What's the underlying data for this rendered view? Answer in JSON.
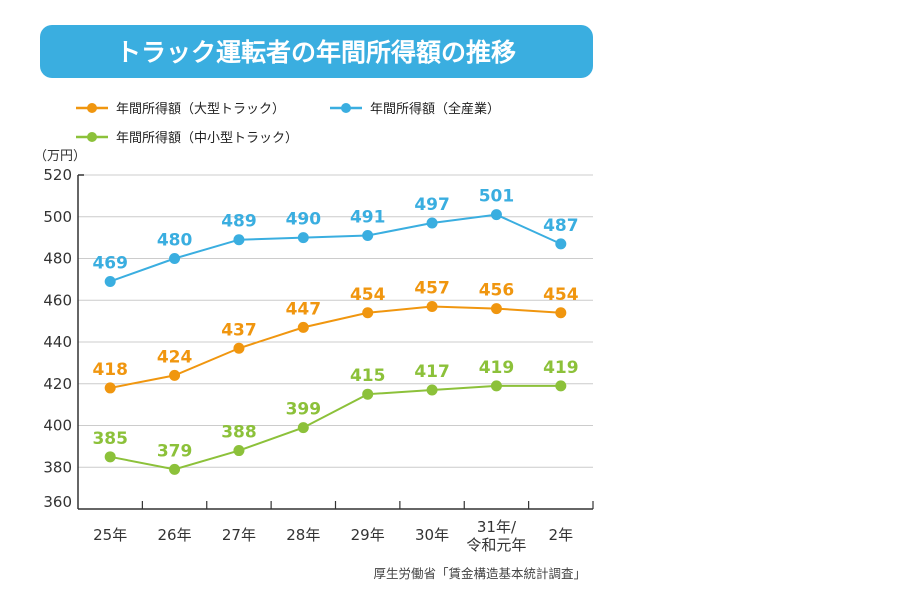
{
  "chart_data": {
    "type": "line",
    "title": "トラック運転者の年間所得額の推移",
    "ylabel": "（万円）",
    "xlabel": "",
    "ylim": [
      360,
      520
    ],
    "yticks": [
      "520",
      "500",
      "480",
      "460",
      "440",
      "420",
      "400",
      "380",
      "360"
    ],
    "grid": true,
    "legend_position": "top-left",
    "categories": [
      "25年",
      "26年",
      "27年",
      "28年",
      "29年",
      "30年",
      "31年/\n令和元年",
      "2年"
    ],
    "series": [
      {
        "name": "年間所得額（大型トラック）",
        "color": "#f0960f",
        "values": [
          418,
          424,
          437,
          447,
          454,
          457,
          456,
          454
        ]
      },
      {
        "name": "年間所得額（全産業）",
        "color": "#3aaee0",
        "values": [
          469,
          480,
          489,
          490,
          491,
          497,
          501,
          487
        ]
      },
      {
        "name": "年間所得額（中小型トラック）",
        "color": "#8cc13a",
        "values": [
          385,
          379,
          388,
          399,
          415,
          417,
          419,
          419
        ]
      }
    ],
    "source": "厚生労働省「賃金構造基本統計調査」"
  },
  "colors": {
    "title_bg": "#3aaee0",
    "grid": "#cccccc",
    "axis": "#333333"
  }
}
